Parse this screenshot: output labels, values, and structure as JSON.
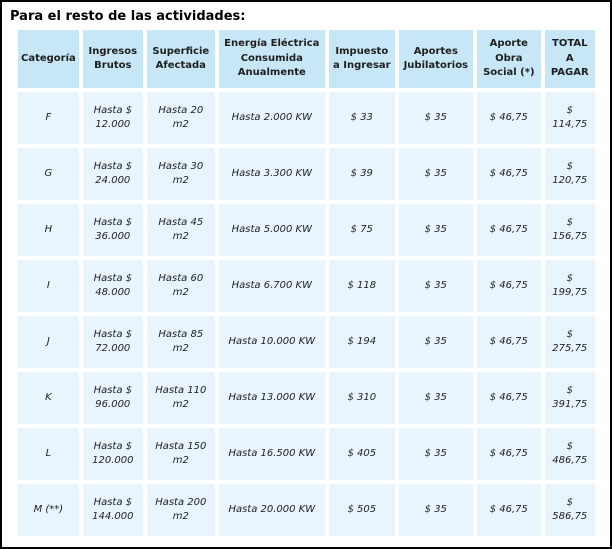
{
  "page": {
    "title": "Para el resto de las actividades:"
  },
  "colors": {
    "frame_border": "#000000",
    "header_cell_bg": "#c7e7f6",
    "data_cell_bg": "#e9f5fc",
    "gutter": "#ffffff",
    "text": "#1f1f1f"
  },
  "table": {
    "headers": [
      "Categoría",
      "Ingresos Brutos",
      "Superficie Afectada",
      "Energía Eléctrica Consumida Anualmente",
      "Impuesto a Ingresar",
      "Aportes Jubilatorios",
      "Aporte Obra Social (*)",
      "TOTAL A PAGAR"
    ],
    "rows": [
      {
        "cells": [
          "F",
          "Hasta $ 12.000",
          "Hasta 20 m2",
          "Hasta 2.000 KW",
          "$ 33",
          "$ 35",
          "$ 46,75",
          "$ 114,75"
        ]
      },
      {
        "cells": [
          "G",
          "Hasta $ 24.000",
          "Hasta 30 m2",
          "Hasta 3.300 KW",
          "$ 39",
          "$ 35",
          "$ 46,75",
          "$ 120,75"
        ]
      },
      {
        "cells": [
          "H",
          "Hasta $ 36.000",
          "Hasta 45 m2",
          "Hasta 5.000 KW",
          "$ 75",
          "$ 35",
          "$ 46,75",
          "$ 156,75"
        ]
      },
      {
        "cells": [
          "I",
          "Hasta $ 48.000",
          "Hasta 60 m2",
          "Hasta 6.700 KW",
          "$ 118",
          "$ 35",
          "$ 46,75",
          "$ 199,75"
        ]
      },
      {
        "cells": [
          "J",
          "Hasta $ 72.000",
          "Hasta 85 m2",
          "Hasta 10.000 KW",
          "$ 194",
          "$ 35",
          "$ 46,75",
          "$ 275,75"
        ]
      },
      {
        "cells": [
          "K",
          "Hasta $ 96.000",
          "Hasta 110 m2",
          "Hasta 13.000 KW",
          "$ 310",
          "$ 35",
          "$ 46,75",
          "$ 391,75"
        ]
      },
      {
        "cells": [
          "L",
          "Hasta $ 120.000",
          "Hasta 150 m2",
          "Hasta 16.500 KW",
          "$ 405",
          "$ 35",
          "$ 46,75",
          "$ 486,75"
        ]
      },
      {
        "cells": [
          "M (**)",
          "Hasta $ 144.000",
          "Hasta 200 m2",
          "Hasta 20.000 KW",
          "$ 505",
          "$ 35",
          "$ 46,75",
          "$ 586,75"
        ]
      }
    ]
  }
}
